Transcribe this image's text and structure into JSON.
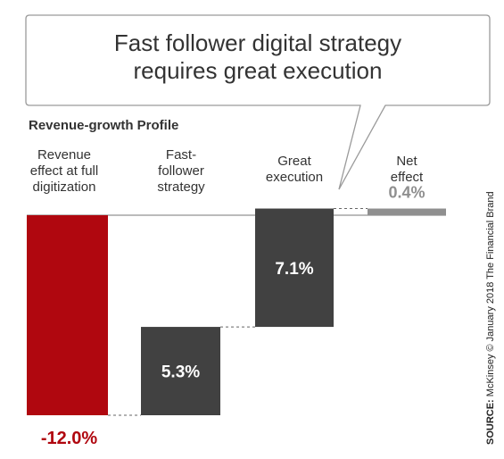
{
  "callout": {
    "line1": "Fast follower digital strategy",
    "line2": "requires great execution"
  },
  "subtitle": "Revenue-growth Profile",
  "source": {
    "prefix": "SOURCE:",
    "text": " McKinsey © January 2018 The Financial Brand"
  },
  "colors": {
    "negative": "#b0070f",
    "step": "#414141",
    "net": "#8f8f8f",
    "axis": "#777777",
    "connector": "#666666"
  },
  "chart_data": {
    "type": "bar",
    "subtype": "waterfall",
    "title": "Revenue-growth Profile",
    "categories": [
      [
        "Revenue",
        "effect at full",
        "digitization"
      ],
      [
        "Fast-",
        "follower",
        "strategy"
      ],
      [
        "Great",
        "execution"
      ],
      [
        "Net",
        "effect"
      ]
    ],
    "values": [
      -12.0,
      5.3,
      7.1,
      0.4
    ],
    "labels": [
      "-12.0%",
      "5.3%",
      "7.1%",
      "0.4%"
    ],
    "unit": "%"
  }
}
